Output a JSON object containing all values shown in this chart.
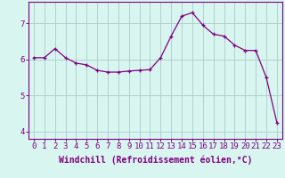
{
  "x": [
    0,
    1,
    2,
    3,
    4,
    5,
    6,
    7,
    8,
    9,
    10,
    11,
    12,
    13,
    14,
    15,
    16,
    17,
    18,
    19,
    20,
    21,
    22,
    23
  ],
  "y": [
    6.05,
    6.05,
    6.3,
    6.05,
    5.9,
    5.85,
    5.7,
    5.65,
    5.65,
    5.68,
    5.7,
    5.72,
    6.05,
    6.65,
    7.2,
    7.3,
    6.95,
    6.7,
    6.65,
    6.4,
    6.25,
    6.25,
    5.5,
    4.25
  ],
  "line_color": "#800080",
  "marker": "+",
  "marker_size": 3,
  "bg_color": "#d8f5f0",
  "grid_color": "#aacccc",
  "xlabel": "Windchill (Refroidissement éolien,°C)",
  "xlabel_fontsize": 7,
  "ylabel_ticks": [
    4,
    5,
    6,
    7
  ],
  "xlim": [
    -0.5,
    23.5
  ],
  "ylim": [
    3.8,
    7.6
  ],
  "xtick_labels": [
    "0",
    "1",
    "2",
    "3",
    "4",
    "5",
    "6",
    "7",
    "8",
    "9",
    "10",
    "11",
    "12",
    "13",
    "14",
    "15",
    "16",
    "17",
    "18",
    "19",
    "20",
    "21",
    "22",
    "23"
  ],
  "tick_fontsize": 6.5
}
